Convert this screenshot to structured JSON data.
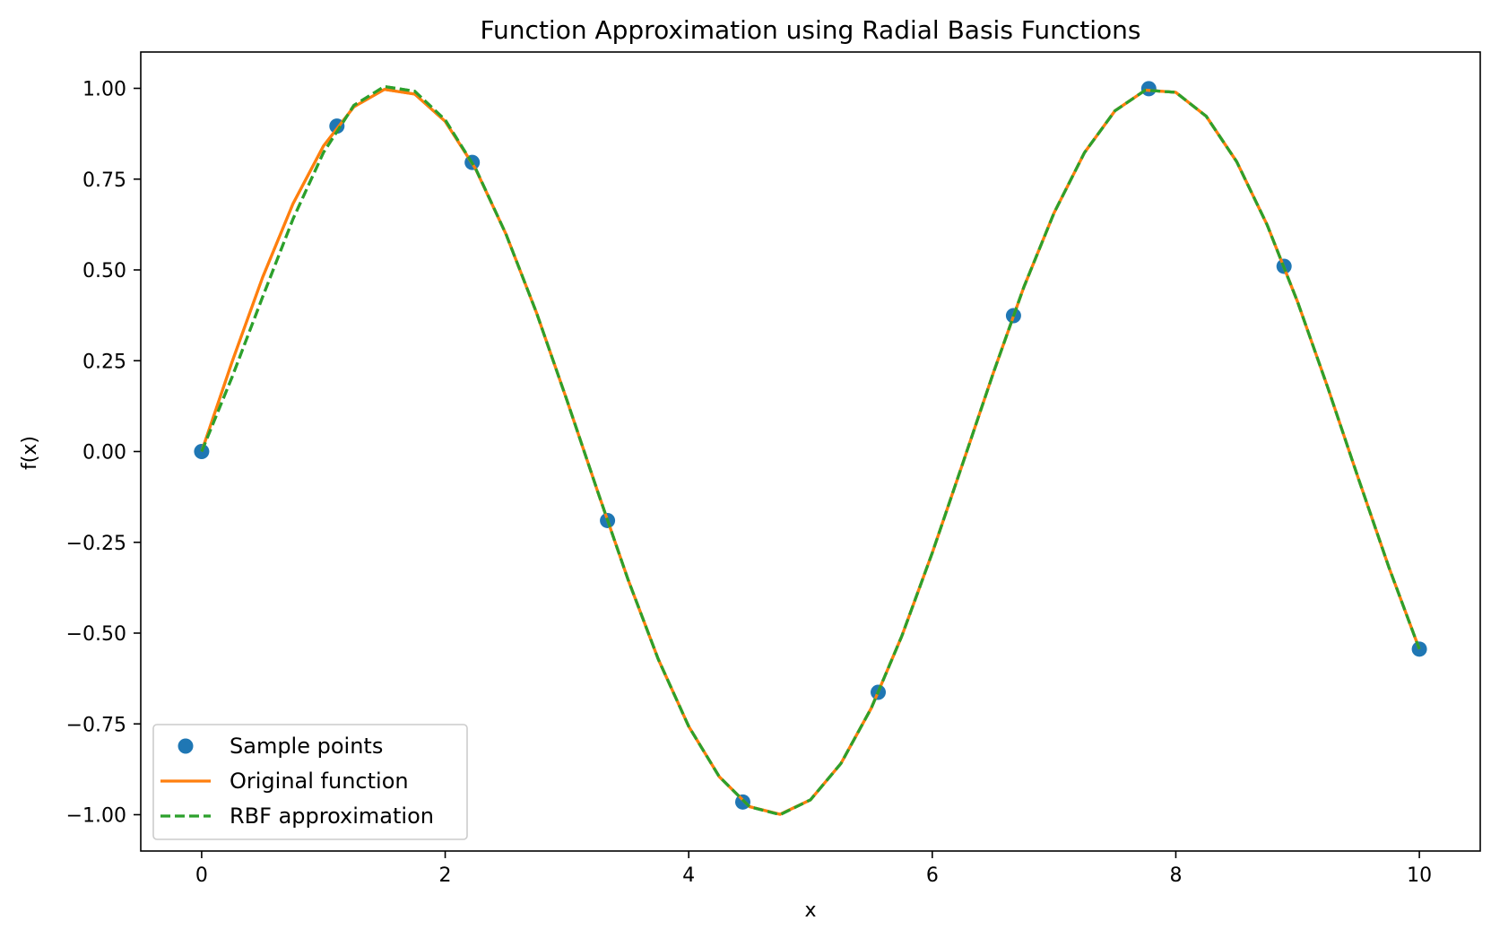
{
  "chart_data": {
    "type": "line",
    "title": "Function Approximation using Radial Basis Functions",
    "xlabel": "x",
    "ylabel": "f(x)",
    "xlim": [
      -0.5,
      10.5
    ],
    "ylim": [
      -1.1,
      1.1
    ],
    "x_ticks": [
      0,
      2,
      4,
      6,
      8,
      10
    ],
    "x_tick_labels": [
      "0",
      "2",
      "4",
      "6",
      "8",
      "10"
    ],
    "y_ticks": [
      1.0,
      0.75,
      0.5,
      0.25,
      0.0,
      -0.25,
      -0.5,
      -0.75,
      -1.0
    ],
    "y_tick_labels": [
      "1.00",
      "0.75",
      "0.50",
      "0.25",
      "0.00",
      "−0.25",
      "−0.50",
      "−0.75",
      "−1.00"
    ],
    "grid": false,
    "legend_position": "lower-left",
    "series": [
      {
        "name": "Sample points",
        "kind": "scatter",
        "color": "#1f77b4",
        "x": [
          0.0,
          1.111,
          2.222,
          3.333,
          4.444,
          5.556,
          6.667,
          7.778,
          8.889,
          10.0
        ],
        "y": [
          0.0,
          0.896,
          0.796,
          -0.19,
          -0.965,
          -0.663,
          0.374,
          0.999,
          0.51,
          -0.544
        ]
      },
      {
        "name": "Original function",
        "kind": "line",
        "color": "#ff7f0e",
        "style": "solid",
        "x": [
          0,
          0.25,
          0.5,
          0.75,
          1.0,
          1.25,
          1.5,
          1.75,
          2.0,
          2.25,
          2.5,
          2.75,
          3.0,
          3.25,
          3.5,
          3.75,
          4.0,
          4.25,
          4.5,
          4.75,
          5.0,
          5.25,
          5.5,
          5.75,
          6.0,
          6.25,
          6.5,
          6.75,
          7.0,
          7.25,
          7.5,
          7.75,
          8.0,
          8.25,
          8.5,
          8.75,
          9.0,
          9.25,
          9.5,
          9.75,
          10.0
        ],
        "y": [
          0.0,
          0.247,
          0.479,
          0.682,
          0.841,
          0.949,
          0.997,
          0.984,
          0.909,
          0.778,
          0.598,
          0.382,
          0.141,
          -0.108,
          -0.351,
          -0.572,
          -0.757,
          -0.895,
          -0.978,
          -0.999,
          -0.959,
          -0.859,
          -0.706,
          -0.508,
          -0.279,
          -0.033,
          0.215,
          0.451,
          0.657,
          0.823,
          0.938,
          0.995,
          0.989,
          0.923,
          0.798,
          0.624,
          0.412,
          0.174,
          -0.075,
          -0.319,
          -0.544
        ]
      },
      {
        "name": "RBF approximation",
        "kind": "line",
        "color": "#2ca02c",
        "style": "dashed",
        "x": [
          0,
          0.25,
          0.5,
          0.75,
          1.0,
          1.25,
          1.5,
          1.75,
          2.0,
          2.25,
          2.5,
          2.75,
          3.0,
          3.25,
          3.5,
          3.75,
          4.0,
          4.25,
          4.5,
          4.75,
          5.0,
          5.25,
          5.5,
          5.75,
          6.0,
          6.25,
          6.5,
          6.75,
          7.0,
          7.25,
          7.5,
          7.75,
          8.0,
          8.25,
          8.5,
          8.75,
          9.0,
          9.25,
          9.5,
          9.75,
          10.0
        ],
        "y": [
          0.0,
          0.205,
          0.425,
          0.64,
          0.823,
          0.953,
          1.005,
          0.992,
          0.913,
          0.779,
          0.598,
          0.382,
          0.141,
          -0.108,
          -0.351,
          -0.572,
          -0.757,
          -0.895,
          -0.978,
          -1.0,
          -0.959,
          -0.859,
          -0.706,
          -0.508,
          -0.279,
          -0.033,
          0.215,
          0.451,
          0.657,
          0.823,
          0.938,
          0.995,
          0.989,
          0.923,
          0.798,
          0.624,
          0.412,
          0.174,
          -0.075,
          -0.319,
          -0.544
        ]
      }
    ]
  }
}
